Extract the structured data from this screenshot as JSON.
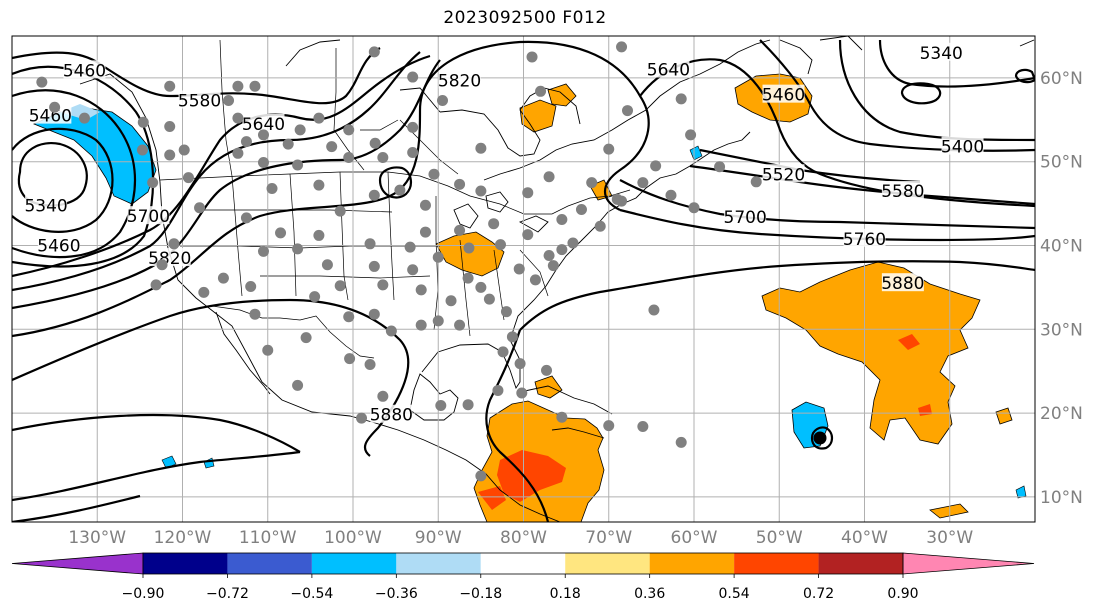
{
  "title": "2023092500 F012",
  "map": {
    "projection": "equirectangular",
    "lon_range": [
      -140,
      -20
    ],
    "lat_range": [
      7,
      65
    ],
    "grid_lon": [
      -140,
      -130,
      -120,
      -110,
      -100,
      -90,
      -80,
      -70,
      -60,
      -50,
      -40,
      -30,
      -20
    ],
    "grid_lat": [
      10,
      20,
      30,
      40,
      50,
      60
    ],
    "lon_labels": [
      "130°W",
      "120°W",
      "110°W",
      "100°W",
      "90°W",
      "80°W",
      "70°W",
      "60°W",
      "50°W",
      "40°W",
      "30°W"
    ],
    "lat_labels": [
      "10°N",
      "20°N",
      "30°N",
      "40°N",
      "50°N",
      "60°N"
    ]
  },
  "contours": {
    "labels": [
      {
        "text": "5460",
        "lon": -131.5,
        "lat": 60.9
      },
      {
        "text": "5580",
        "lon": -118,
        "lat": 57.3
      },
      {
        "text": "5640",
        "lon": -110.5,
        "lat": 54.5
      },
      {
        "text": "5820",
        "lon": -87.5,
        "lat": 59.7
      },
      {
        "text": "5640",
        "lon": -63,
        "lat": 61
      },
      {
        "text": "5460",
        "lon": -49.5,
        "lat": 58
      },
      {
        "text": "5340",
        "lon": -31,
        "lat": 63
      },
      {
        "text": "5400",
        "lon": -28.5,
        "lat": 51.8
      },
      {
        "text": "5520",
        "lon": -49.5,
        "lat": 48.5
      },
      {
        "text": "5580",
        "lon": -35.5,
        "lat": 46.5
      },
      {
        "text": "5700",
        "lon": -54,
        "lat": 43.4
      },
      {
        "text": "5760",
        "lon": -40,
        "lat": 40.8
      },
      {
        "text": "5880",
        "lon": -35.5,
        "lat": 35.5
      },
      {
        "text": "5460",
        "lon": -135.5,
        "lat": 55.5
      },
      {
        "text": "5340",
        "lon": -136,
        "lat": 44.8
      },
      {
        "text": "5460",
        "lon": -134.5,
        "lat": 40
      },
      {
        "text": "5700",
        "lon": -124,
        "lat": 43.5
      },
      {
        "text": "5820",
        "lon": -121.5,
        "lat": 38.5
      },
      {
        "text": "5880",
        "lon": -95.5,
        "lat": 19.8
      }
    ]
  },
  "colorbar": {
    "ticks": [
      "−0.90",
      "−0.72",
      "−0.54",
      "−0.36",
      "−0.18",
      "0.18",
      "0.36",
      "0.54",
      "0.72",
      "0.90"
    ],
    "colors": [
      "#9932cc",
      "#00008b",
      "#3b5bd0",
      "#00bfff",
      "#afdcf5",
      "#ffffff",
      "#ffe680",
      "#ffa500",
      "#ff4500",
      "#b22222",
      "#ff86b2"
    ]
  },
  "stations": [
    [
      -124.6,
      54.7
    ],
    [
      -121.5,
      59
    ],
    [
      -114.6,
      57.3
    ],
    [
      -113.5,
      59
    ],
    [
      -111.5,
      59
    ],
    [
      -113.5,
      55.2
    ],
    [
      -110.5,
      53.2
    ],
    [
      -107.6,
      52.1
    ],
    [
      -106.2,
      53.8
    ],
    [
      -104,
      55.2
    ],
    [
      -121.5,
      54.2
    ],
    [
      -121.5,
      50.8
    ],
    [
      -119.8,
      51.4
    ],
    [
      -119.3,
      48.1
    ],
    [
      -112.5,
      52.4
    ],
    [
      -113.5,
      51
    ],
    [
      -110.5,
      49.9
    ],
    [
      -106.5,
      49.6
    ],
    [
      -102.5,
      51.8
    ],
    [
      -100.5,
      53.8
    ],
    [
      -100.5,
      50.5
    ],
    [
      -97.4,
      52.2
    ],
    [
      -96.5,
      50.5
    ],
    [
      -93,
      51.1
    ],
    [
      -93,
      54.1
    ],
    [
      -89.5,
      57.3
    ],
    [
      -93,
      60.1
    ],
    [
      -97.5,
      63.1
    ],
    [
      -136.5,
      59.5
    ],
    [
      -135,
      56.5
    ],
    [
      -131.5,
      55.2
    ],
    [
      -124.7,
      51.4
    ],
    [
      -123.5,
      47.5
    ],
    [
      -118,
      44.5
    ],
    [
      -112.5,
      43.3
    ],
    [
      -109.5,
      46.8
    ],
    [
      -104,
      47.2
    ],
    [
      -108.5,
      41.5
    ],
    [
      -101.5,
      44.1
    ],
    [
      -97.5,
      46
    ],
    [
      -94.5,
      46.6
    ],
    [
      -91.5,
      44.8
    ],
    [
      -91.5,
      41.6
    ],
    [
      -93.3,
      39.8
    ],
    [
      -98,
      40.2
    ],
    [
      -104,
      41.2
    ],
    [
      -106.5,
      39.6
    ],
    [
      -103,
      37.7
    ],
    [
      -97.5,
      37.5
    ],
    [
      -93,
      37.1
    ],
    [
      -90,
      38.6
    ],
    [
      -110.5,
      39.3
    ],
    [
      -112,
      35.1
    ],
    [
      -115.2,
      36.1
    ],
    [
      -117.5,
      34.4
    ],
    [
      -121,
      40.2
    ],
    [
      -122.4,
      37.7
    ],
    [
      -123.1,
      35.3
    ],
    [
      -111.5,
      31.8
    ],
    [
      -104.5,
      33.9
    ],
    [
      -101.5,
      35.2
    ],
    [
      -96.5,
      35.3
    ],
    [
      -97.5,
      31.8
    ],
    [
      -100.5,
      31.5
    ],
    [
      -95.5,
      29.8
    ],
    [
      -92,
      34.7
    ],
    [
      -88.5,
      33.4
    ],
    [
      -87.5,
      30.5
    ],
    [
      -90,
      31
    ],
    [
      -92,
      30.5
    ],
    [
      -86.5,
      36.1
    ],
    [
      -85,
      35
    ],
    [
      -84,
      33.6
    ],
    [
      -82,
      32.1
    ],
    [
      -81.3,
      29.1
    ],
    [
      -82.4,
      27.3
    ],
    [
      -80.4,
      25.9
    ],
    [
      -78.6,
      35.9
    ],
    [
      -77,
      38.8
    ],
    [
      -74.2,
      40.3
    ],
    [
      -71,
      42.3
    ],
    [
      -68.5,
      45.3
    ],
    [
      -73.2,
      44.3
    ],
    [
      -75.5,
      43.1
    ],
    [
      -79.5,
      41.3
    ],
    [
      -82.7,
      40.1
    ],
    [
      -86.4,
      39.7
    ],
    [
      -83.5,
      42.6
    ],
    [
      -87.5,
      41.8
    ],
    [
      -85,
      46.5
    ],
    [
      -79.5,
      46.3
    ],
    [
      -77,
      48.2
    ],
    [
      -72,
      47.5
    ],
    [
      -66,
      47.5
    ],
    [
      -60,
      44.5
    ],
    [
      -52.7,
      47.6
    ],
    [
      -57,
      49.4
    ],
    [
      -64.5,
      49.5
    ],
    [
      -62.7,
      46
    ],
    [
      -70,
      51.5
    ],
    [
      -67.8,
      56.1
    ],
    [
      -60.4,
      53.2
    ],
    [
      -61.5,
      57.5
    ],
    [
      -78,
      58.4
    ],
    [
      -79,
      62.5
    ],
    [
      -68.5,
      63.7
    ],
    [
      -69,
      45.5
    ],
    [
      -85,
      51.6
    ],
    [
      -87.5,
      47.3
    ],
    [
      -90.5,
      48.5
    ],
    [
      -75.5,
      39.5
    ],
    [
      -76.5,
      37.6
    ],
    [
      -80.5,
      37.2
    ],
    [
      -64.7,
      32.3
    ],
    [
      -77.3,
      25.1
    ],
    [
      -75.5,
      19.5
    ],
    [
      -80.2,
      22.4
    ],
    [
      -86.5,
      21
    ],
    [
      -89.7,
      20.9
    ],
    [
      -99,
      19.4
    ],
    [
      -96.5,
      22
    ],
    [
      -98,
      25.8
    ],
    [
      -100.4,
      26.5
    ],
    [
      -106.5,
      23.3
    ],
    [
      -110,
      27.5
    ],
    [
      -105.5,
      29
    ],
    [
      -66,
      18.4
    ],
    [
      -70,
      18.5
    ],
    [
      -85,
      12.5
    ],
    [
      -83,
      22.7
    ],
    [
      -61.5,
      16.5
    ]
  ]
}
